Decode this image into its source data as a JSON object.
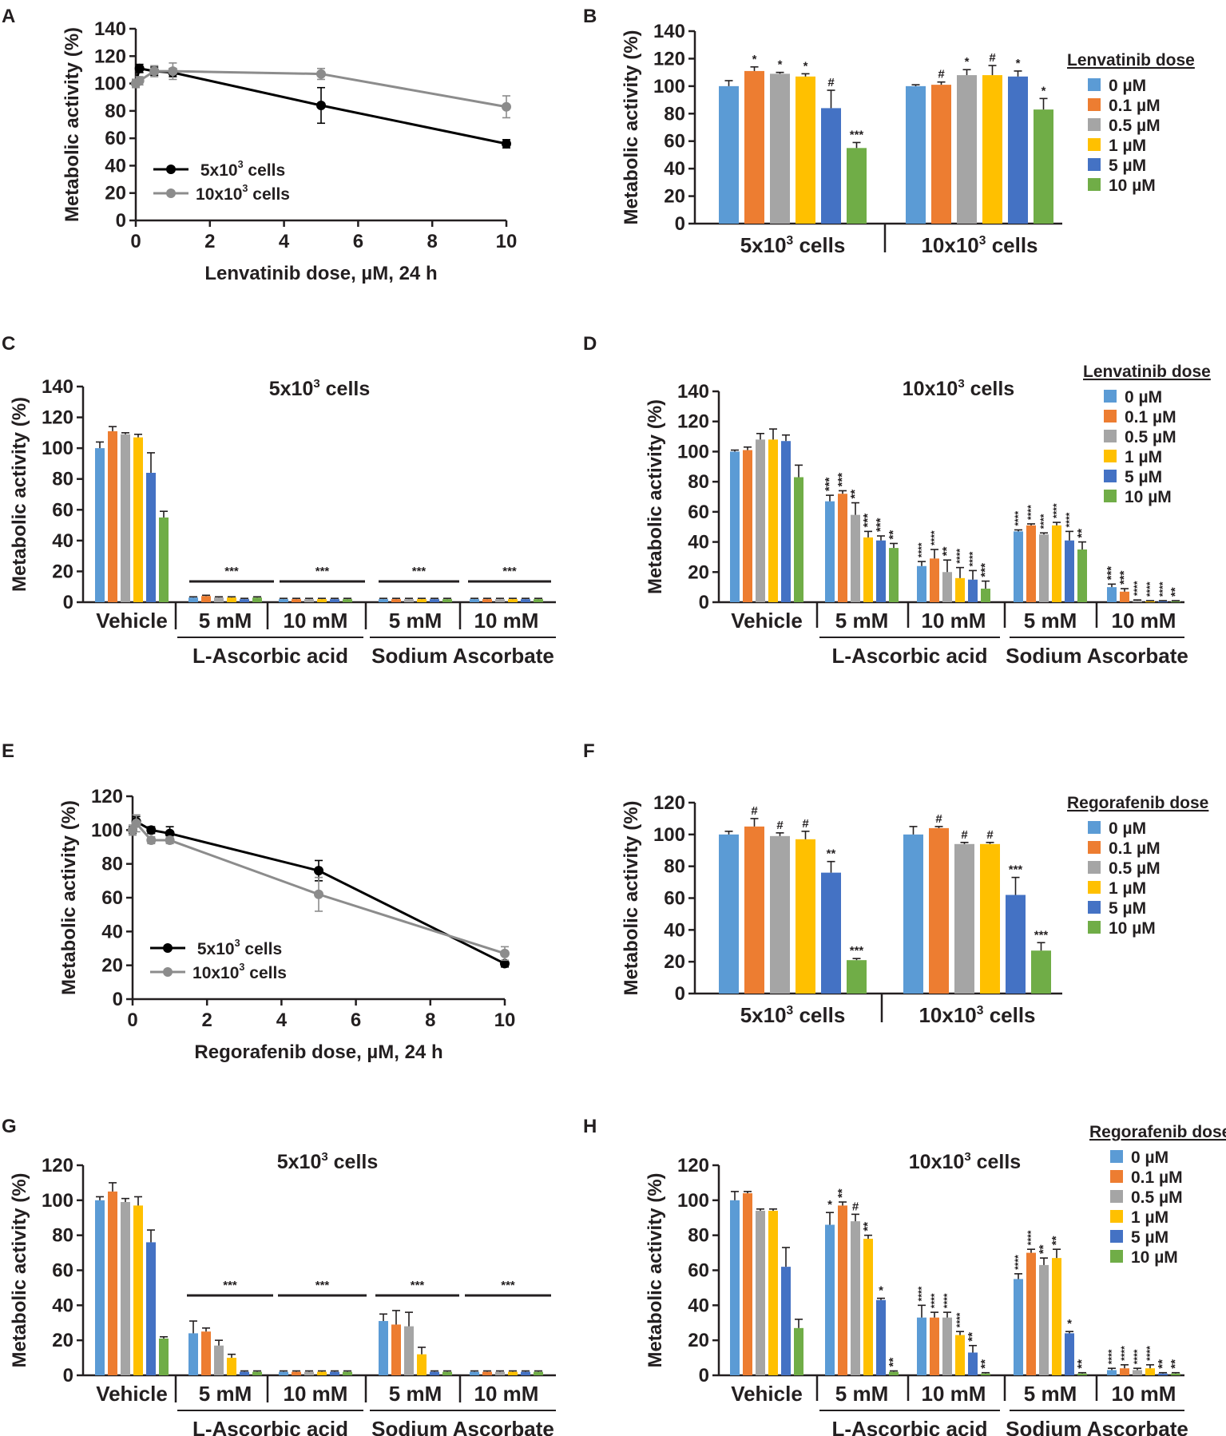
{
  "figure": {
    "panel_labels": [
      "A",
      "B",
      "C",
      "D",
      "E",
      "F",
      "G",
      "H"
    ]
  },
  "colors": {
    "dose_colors": [
      "#5b9bd5",
      "#ed7d31",
      "#a5a5a5",
      "#ffc000",
      "#4472c4",
      "#70ad47"
    ],
    "line_black": "#000000",
    "line_gray": "#8c8c8c",
    "axis": "#231f20"
  },
  "chart_data": [
    {
      "panel": "A",
      "type": "line",
      "xlabel": "Lenvatinib dose, µM, 24 h",
      "ylabel": "Metabolic activity (%)",
      "xlim": [
        0,
        10
      ],
      "ylim": [
        0,
        140
      ],
      "xticks": [
        0,
        2,
        4,
        6,
        8,
        10
      ],
      "yticks": [
        0,
        20,
        40,
        60,
        80,
        100,
        120,
        140
      ],
      "legend_placement": "bottom-left",
      "series": [
        {
          "name": "5x10³ cells",
          "color": "#000000",
          "x": [
            0,
            0.1,
            0.5,
            1,
            5,
            10
          ],
          "y": [
            100,
            111,
            109,
            108,
            84,
            56
          ],
          "err": [
            3,
            3,
            3,
            3,
            13,
            3
          ]
        },
        {
          "name": "10x10³ cells",
          "color": "#8c8c8c",
          "x": [
            0,
            0.1,
            0.5,
            1,
            5,
            10
          ],
          "y": [
            100,
            102,
            109,
            109,
            107,
            83
          ],
          "err": [
            3,
            3,
            4,
            6,
            4,
            8
          ]
        }
      ]
    },
    {
      "panel": "B",
      "type": "bar",
      "ylabel": "Metabolic activity (%)",
      "ylim": [
        0,
        140
      ],
      "yticks": [
        0,
        20,
        40,
        60,
        80,
        100,
        120,
        140
      ],
      "legend_title": "Lenvatinib dose",
      "legend": [
        "0 µM",
        "0.1 µM",
        "0.5 µM",
        "1 µM",
        "5 µM",
        "10 µM"
      ],
      "legend_placement": "top-right",
      "groups": [
        {
          "label": "5x10³ cells",
          "values": [
            100,
            111,
            109,
            107,
            84,
            55
          ],
          "err": [
            4,
            3,
            1,
            2,
            13,
            4
          ],
          "sig": [
            "",
            "*",
            "*",
            "*",
            "#",
            "***"
          ]
        },
        {
          "label": "10x10³ cells",
          "values": [
            100,
            101,
            108,
            108,
            107,
            83
          ],
          "err": [
            1,
            2,
            4,
            7,
            4,
            8
          ],
          "sig": [
            "",
            "#",
            "*",
            "#",
            "*",
            "*"
          ]
        }
      ]
    },
    {
      "panel": "C",
      "type": "bar",
      "title": "5x10³ cells",
      "ylabel": "Metabolic activity (%)",
      "ylim": [
        0,
        140
      ],
      "yticks": [
        0,
        20,
        40,
        60,
        80,
        100,
        120,
        140
      ],
      "groups": [
        {
          "label": "Vehicle",
          "values": [
            100,
            111,
            109,
            107,
            84,
            55
          ],
          "err": [
            4,
            3,
            1,
            2,
            13,
            4
          ],
          "sig": [
            "",
            "",
            "",
            "",
            "",
            ""
          ]
        },
        {
          "label": "5 mM",
          "values": [
            3,
            4,
            3,
            3,
            2,
            3
          ],
          "err": [
            0.5,
            0.5,
            0.5,
            0.5,
            0.5,
            0.5
          ],
          "sig": [
            "",
            "",
            "",
            "",
            "",
            ""
          ]
        },
        {
          "label": "10 mM",
          "values": [
            2,
            2,
            2,
            2,
            2,
            2
          ],
          "err": [
            0.5,
            0.5,
            0.5,
            0.5,
            0.5,
            0.5
          ],
          "sig": [
            "",
            "",
            "",
            "",
            "",
            ""
          ]
        },
        {
          "label": "5 mM",
          "values": [
            2,
            2,
            2,
            2,
            2,
            2
          ],
          "err": [
            0.5,
            0.5,
            0.5,
            0.5,
            0.5,
            0.5
          ],
          "sig": [
            "",
            "",
            "",
            "",
            "",
            ""
          ]
        },
        {
          "label": "10 mM",
          "values": [
            2,
            2,
            2,
            2,
            2,
            2
          ],
          "err": [
            0.5,
            0.5,
            0.5,
            0.5,
            0.5,
            0.5
          ],
          "sig": [
            "",
            "",
            "",
            "",
            "",
            ""
          ]
        }
      ],
      "bracket_sig": [
        "***",
        "***",
        "***",
        "***"
      ],
      "treatments": [
        "L-Ascorbic acid",
        "Sodium Ascorbate"
      ]
    },
    {
      "panel": "D",
      "type": "bar",
      "title": "10x10³ cells",
      "ylabel": "Metabolic activity (%)",
      "ylim": [
        0,
        140
      ],
      "yticks": [
        0,
        20,
        40,
        60,
        80,
        100,
        120,
        140
      ],
      "legend_title": "Lenvatinib dose",
      "legend": [
        "0 µM",
        "0.1 µM",
        "0.5 µM",
        "1 µM",
        "5 µM",
        "10 µM"
      ],
      "legend_placement": "top-right",
      "groups": [
        {
          "label": "Vehicle",
          "values": [
            100,
            101,
            108,
            108,
            107,
            83
          ],
          "err": [
            1,
            2,
            4,
            7,
            4,
            8
          ],
          "sig": [
            "",
            "",
            "",
            "",
            "",
            ""
          ]
        },
        {
          "label": "5 mM",
          "values": [
            67,
            72,
            58,
            43,
            41,
            36
          ],
          "err": [
            4,
            2,
            8,
            4,
            3,
            3
          ],
          "sig": [
            "***",
            "***",
            "**",
            "***",
            "***",
            "**"
          ]
        },
        {
          "label": "10 mM",
          "values": [
            24,
            29,
            20,
            16,
            15,
            9
          ],
          "err": [
            3,
            6,
            8,
            7,
            6,
            5
          ],
          "sig": [
            "****",
            "****",
            "**",
            "****",
            "****",
            "***"
          ]
        },
        {
          "label": "5 mM",
          "values": [
            47,
            51,
            45,
            51,
            41,
            35
          ],
          "err": [
            1,
            1,
            1,
            2,
            6,
            5
          ],
          "sig": [
            "****",
            "****",
            "****",
            "****",
            "****",
            "**"
          ]
        },
        {
          "label": "10 mM",
          "values": [
            10,
            7,
            1,
            0.5,
            0.5,
            0.5
          ],
          "err": [
            2,
            2,
            0.5,
            0.5,
            0.5,
            0.5
          ],
          "sig": [
            "***",
            "***",
            "****",
            "****",
            "****",
            "**"
          ]
        }
      ],
      "treatments": [
        "L-Ascorbic acid",
        "Sodium Ascorbate"
      ]
    },
    {
      "panel": "E",
      "type": "line",
      "xlabel": "Regorafenib dose, µM, 24 h",
      "ylabel": "Metabolic activity (%)",
      "xlim": [
        0,
        10
      ],
      "ylim": [
        0,
        120
      ],
      "xticks": [
        0,
        2,
        4,
        6,
        8,
        10
      ],
      "yticks": [
        0,
        20,
        40,
        60,
        80,
        100,
        120
      ],
      "legend_placement": "bottom-left",
      "series": [
        {
          "name": "5x10³ cells",
          "color": "#000000",
          "x": [
            0,
            0.1,
            0.5,
            1,
            5,
            10
          ],
          "y": [
            100,
            105,
            100,
            98,
            76,
            21
          ],
          "err": [
            2,
            3,
            2,
            4,
            6,
            2
          ]
        },
        {
          "name": "10x10³ cells",
          "color": "#8c8c8c",
          "x": [
            0,
            0.1,
            0.5,
            1,
            5,
            10
          ],
          "y": [
            100,
            104,
            94,
            94,
            62,
            27
          ],
          "err": [
            3,
            5,
            2,
            2,
            10,
            4
          ]
        }
      ]
    },
    {
      "panel": "F",
      "type": "bar",
      "ylabel": "Metabolic activity (%)",
      "ylim": [
        0,
        120
      ],
      "yticks": [
        0,
        20,
        40,
        60,
        80,
        100,
        120
      ],
      "legend_title": "Regorafenib dose",
      "legend": [
        "0 µM",
        "0.1 µM",
        "0.5 µM",
        "1 µM",
        "5 µM",
        "10 µM"
      ],
      "legend_placement": "top-right",
      "groups": [
        {
          "label": "5x10³ cells",
          "values": [
            100,
            105,
            99,
            97,
            76,
            21
          ],
          "err": [
            2,
            5,
            2,
            5,
            7,
            1
          ],
          "sig": [
            "",
            "#",
            "#",
            "#",
            "**",
            "***"
          ]
        },
        {
          "label": "10x10³ cells",
          "values": [
            100,
            104,
            94,
            94,
            62,
            27
          ],
          "err": [
            5,
            1,
            1,
            1,
            11,
            5
          ],
          "sig": [
            "",
            "#",
            "#",
            "#",
            "***",
            "***"
          ]
        }
      ]
    },
    {
      "panel": "G",
      "type": "bar",
      "title": "5x10³ cells",
      "ylabel": "Metabolic activity (%)",
      "ylim": [
        0,
        120
      ],
      "yticks": [
        0,
        20,
        40,
        60,
        80,
        100,
        120
      ],
      "groups": [
        {
          "label": "Vehicle",
          "values": [
            100,
            105,
            99,
            97,
            76,
            21
          ],
          "err": [
            2,
            5,
            2,
            5,
            7,
            1
          ],
          "sig": [
            "",
            "",
            "",
            "",
            "",
            ""
          ]
        },
        {
          "label": "5 mM",
          "values": [
            24,
            25,
            17,
            10,
            2,
            2
          ],
          "err": [
            7,
            2,
            3,
            2,
            0.5,
            0.5
          ],
          "sig": [
            "",
            "",
            "",
            "",
            "",
            ""
          ]
        },
        {
          "label": "10 mM",
          "values": [
            2,
            2,
            2,
            2,
            2,
            2
          ],
          "err": [
            0.5,
            0.5,
            0.5,
            0.5,
            0.5,
            0.5
          ],
          "sig": [
            "",
            "",
            "",
            "",
            "",
            ""
          ]
        },
        {
          "label": "5 mM",
          "values": [
            31,
            29,
            28,
            12,
            2,
            2
          ],
          "err": [
            4,
            8,
            8,
            4,
            0.5,
            0.5
          ],
          "sig": [
            "",
            "",
            "",
            "",
            "",
            ""
          ]
        },
        {
          "label": "10 mM",
          "values": [
            2,
            2,
            2,
            2,
            2,
            2
          ],
          "err": [
            0.5,
            0.5,
            0.5,
            0.5,
            0.5,
            0.5
          ],
          "sig": [
            "",
            "",
            "",
            "",
            "",
            ""
          ]
        }
      ],
      "bracket_sig": [
        "***",
        "***",
        "***",
        "***"
      ],
      "treatments": [
        "L-Ascorbic acid",
        "Sodium Ascorbate"
      ]
    },
    {
      "panel": "H",
      "type": "bar",
      "title": "10x10³ cells",
      "ylabel": "Metabolic activity (%)",
      "ylim": [
        0,
        120
      ],
      "yticks": [
        0,
        20,
        40,
        60,
        80,
        100,
        120
      ],
      "legend_title": "Regorafenib dose",
      "legend": [
        "0 µM",
        "0.1 µM",
        "0.5 µM",
        "1 µM",
        "5 µM",
        "10 µM"
      ],
      "legend_placement": "top-right",
      "groups": [
        {
          "label": "Vehicle",
          "values": [
            100,
            104,
            94,
            94,
            62,
            27
          ],
          "err": [
            5,
            1,
            1,
            1,
            11,
            5
          ],
          "sig": [
            "",
            "",
            "",
            "",
            "",
            ""
          ]
        },
        {
          "label": "5 mM",
          "values": [
            86,
            97,
            88,
            78,
            43,
            2
          ],
          "err": [
            7,
            2,
            4,
            2,
            1,
            0.5
          ],
          "sig": [
            "*",
            "**",
            "#",
            "**",
            "*",
            "**"
          ]
        },
        {
          "label": "10 mM",
          "values": [
            33,
            33,
            33,
            23,
            13,
            1
          ],
          "err": [
            7,
            3,
            3,
            2,
            4,
            0.5
          ],
          "sig": [
            "****",
            "****",
            "****",
            "****",
            "**",
            "**"
          ]
        },
        {
          "label": "5 mM",
          "values": [
            55,
            70,
            63,
            67,
            24,
            1
          ],
          "err": [
            3,
            2,
            4,
            5,
            1,
            0.5
          ],
          "sig": [
            "****",
            "****",
            "**",
            "**",
            "*",
            "**"
          ]
        },
        {
          "label": "10 mM",
          "values": [
            3,
            4,
            3,
            4,
            1,
            1
          ],
          "err": [
            1,
            2,
            1,
            2,
            0.5,
            0.5
          ],
          "sig": [
            "****",
            "****",
            "****",
            "****",
            "**",
            "**"
          ]
        }
      ],
      "treatments": [
        "L-Ascorbic acid",
        "Sodium Ascorbate"
      ]
    }
  ]
}
